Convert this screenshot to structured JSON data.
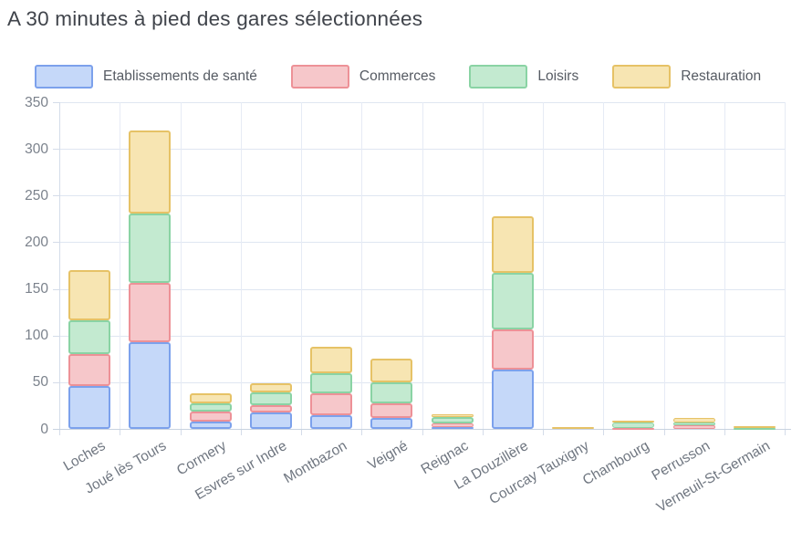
{
  "title": "A 30 minutes à pied des gares sélectionnées",
  "palette": {
    "grid_h": "#dfe6f1",
    "grid_v": "#e6ebf5",
    "axis": "#c9d3e0",
    "tick_text": "#7b828c",
    "category_text": "#6f7680",
    "title_text": "#40444b",
    "legend_text": "#565b63"
  },
  "chart_data": {
    "type": "bar",
    "stacked": true,
    "title": "A 30 minutes à pied des gares sélectionnées",
    "xlabel": "",
    "ylabel": "",
    "ylim": [
      0,
      350
    ],
    "ytick_step": 50,
    "grid": true,
    "legend_position": "top",
    "categories": [
      "Loches",
      "Joué lès Tours",
      "Cormery",
      "Esvres sur Indre",
      "Montbazon",
      "Veigné",
      "Reignac",
      "La Douzillère",
      "Courcay Tauxigny",
      "Chambourg",
      "Perrusson",
      "Verneuil-St-Germain"
    ],
    "series": [
      {
        "name": "Etablissements de santé",
        "fill": "#c5d8f9",
        "border": "#7ca1ec",
        "values": [
          46,
          93,
          8,
          18,
          15,
          12,
          2,
          64,
          0,
          0,
          0,
          0
        ]
      },
      {
        "name": "Commerces",
        "fill": "#f6c7ca",
        "border": "#ed9197",
        "values": [
          34,
          63,
          11,
          7,
          23,
          15,
          4,
          43,
          0,
          1,
          4,
          0
        ]
      },
      {
        "name": "Loisirs",
        "fill": "#c3ead0",
        "border": "#8ad3a4",
        "values": [
          36,
          75,
          8,
          14,
          22,
          23,
          7,
          60,
          0,
          6,
          3,
          1
        ]
      },
      {
        "name": "Restauration",
        "fill": "#f7e5b2",
        "border": "#e6c266",
        "values": [
          54,
          89,
          11,
          10,
          28,
          25,
          3,
          61,
          2,
          2,
          5,
          2
        ]
      }
    ],
    "totals": [
      170,
      320,
      38,
      49,
      88,
      75,
      16,
      228,
      2,
      9,
      12,
      3
    ]
  }
}
